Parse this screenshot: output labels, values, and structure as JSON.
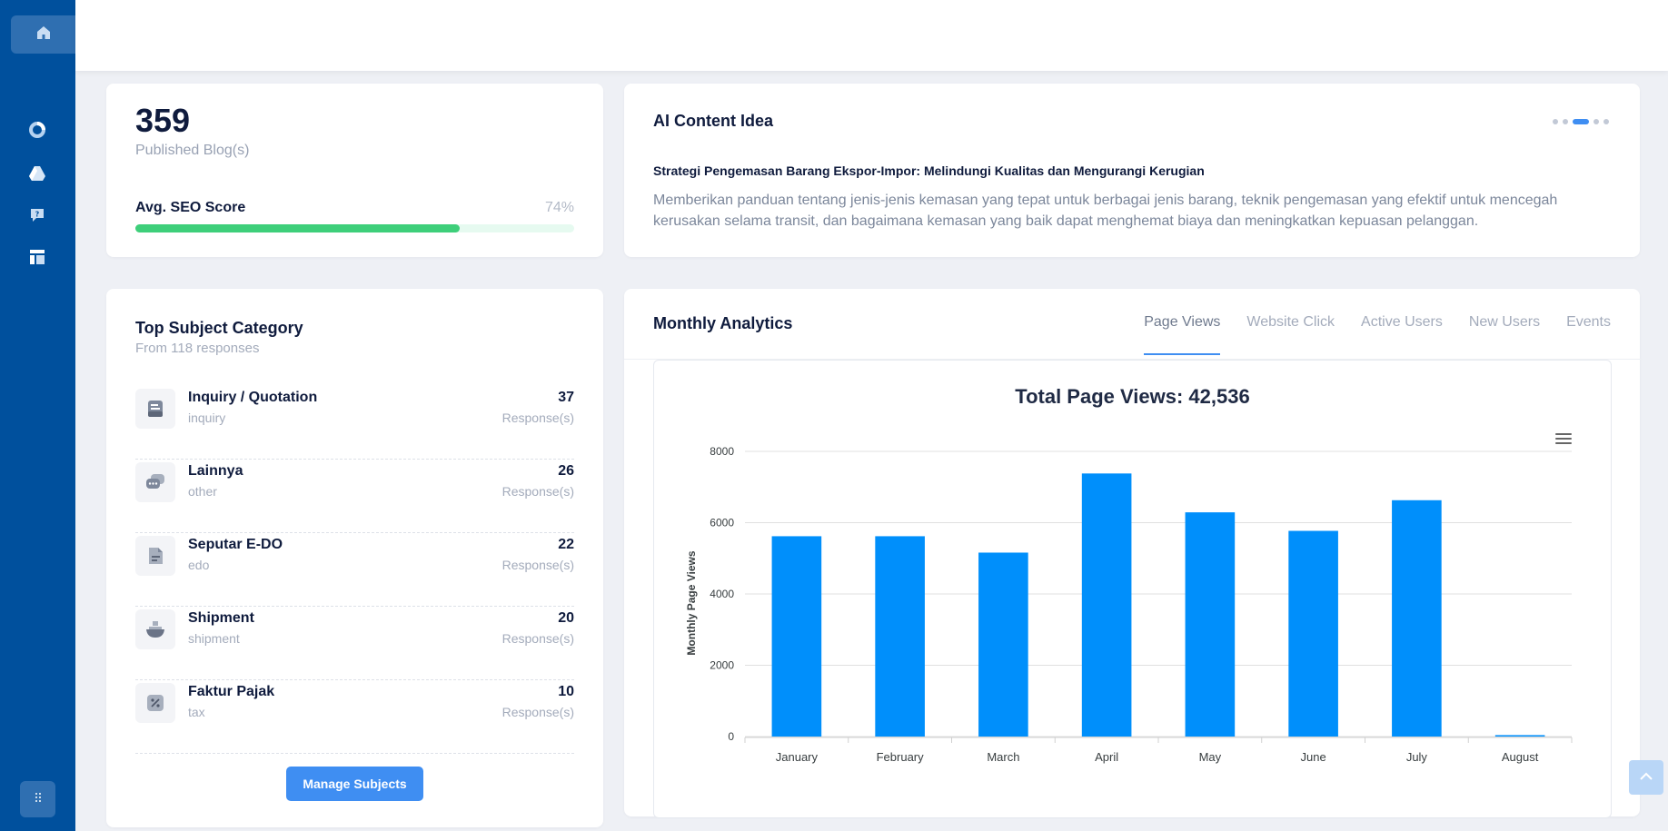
{
  "sidebar": {
    "items": [
      {
        "icon": "home-icon"
      },
      {
        "icon": "pie-chart-icon"
      },
      {
        "icon": "drive-icon"
      },
      {
        "icon": "help-chat-icon"
      },
      {
        "icon": "layout-icon"
      }
    ],
    "bottom_icon": "grid-dots-icon"
  },
  "blog_stats": {
    "count": "359",
    "label": "Published Blog(s)",
    "seo_label": "Avg. SEO Score",
    "seo_value": "74%",
    "seo_percent": 74
  },
  "ai_content": {
    "title": "AI Content Idea",
    "headline": "Strategi Pengemasan Barang Ekspor-Impor: Melindungi Kualitas dan Mengurangi Kerugian",
    "description": "Memberikan panduan tentang jenis-jenis kemasan yang tepat untuk berbagai jenis barang, teknik pengemasan yang efektif untuk mencegah kerusakan selama transit, dan bagaimana kemasan yang baik dapat menghemat biaya dan meningkatkan kepuasan pelanggan.",
    "carousel_active_index": 2,
    "carousel_count": 5
  },
  "subjects": {
    "title": "Top Subject Category",
    "subtitle": "From 118 responses",
    "items": [
      {
        "name": "Inquiry / Quotation",
        "key": "inquiry",
        "count": "37",
        "unit": "Response(s)",
        "icon": "inbox-icon"
      },
      {
        "name": "Lainnya",
        "key": "other",
        "count": "26",
        "unit": "Response(s)",
        "icon": "chat-bubbles-icon"
      },
      {
        "name": "Seputar E-DO",
        "key": "edo",
        "count": "22",
        "unit": "Response(s)",
        "icon": "document-icon"
      },
      {
        "name": "Shipment",
        "key": "shipment",
        "count": "20",
        "unit": "Response(s)",
        "icon": "ship-icon"
      },
      {
        "name": "Faktur Pajak",
        "key": "tax",
        "count": "10",
        "unit": "Response(s)",
        "icon": "percent-icon"
      }
    ],
    "button_label": "Manage Subjects"
  },
  "analytics": {
    "title": "Monthly Analytics",
    "tabs": [
      "Page Views",
      "Website Click",
      "Active Users",
      "New Users",
      "Events"
    ],
    "active_tab": 0
  },
  "chart_data": {
    "type": "bar",
    "title": "Total Page Views: 42,536",
    "ylabel": "Monthly Page Views",
    "xlabel": "",
    "categories": [
      "January",
      "February",
      "March",
      "April",
      "May",
      "June",
      "July",
      "August"
    ],
    "values": [
      5620,
      5620,
      5160,
      7380,
      6290,
      5770,
      6630,
      40
    ],
    "ylim": [
      0,
      8000
    ],
    "yticks": [
      0,
      2000,
      4000,
      6000,
      8000
    ],
    "color": "#008ffb",
    "grid": true
  }
}
